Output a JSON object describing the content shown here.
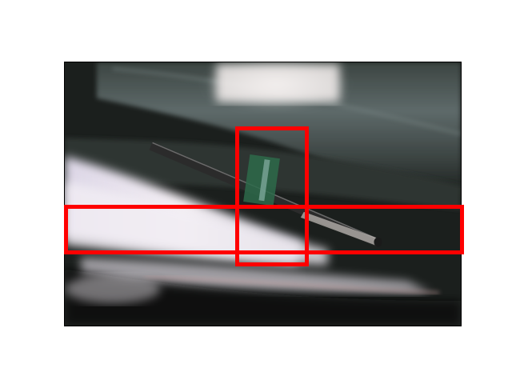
{
  "image": {
    "subject": "pen-in-bag-pocket"
  },
  "annotations": {
    "box_color": "#ff0000",
    "count": 2
  },
  "colors": {
    "background": "#ffffff",
    "bag_dark": "#1a1d1b",
    "bag_lining": "#5e6a6a",
    "paper": "#e8e4ec",
    "pen_body": "#2a2a2a",
    "pen_clip": "#2d6a4a"
  }
}
